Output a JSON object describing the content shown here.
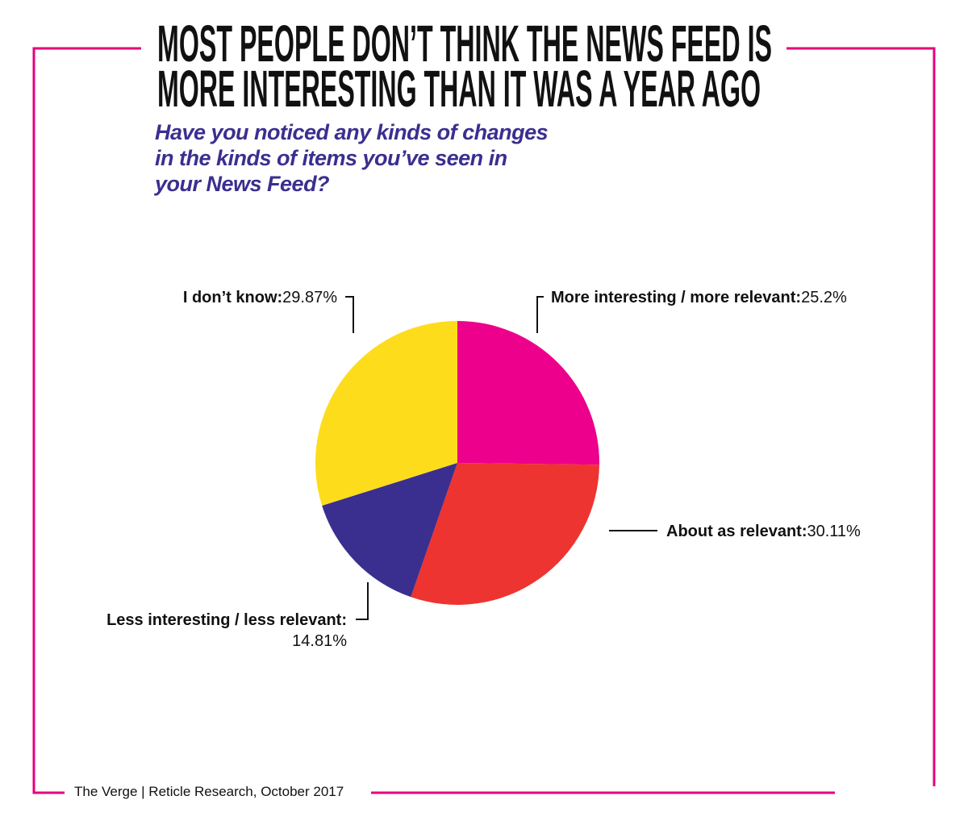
{
  "chart_data": {
    "type": "pie",
    "title": [
      "MOST PEOPLE DON’T THINK THE NEWS FEED IS",
      "MORE INTERESTING THAN IT WAS A YEAR AGO"
    ],
    "subtitle": "Have you noticed any kinds of changes in the kinds of items you’ve seen in your News Feed?",
    "categories": [
      "More interesting / more relevant:",
      "About as relevant:",
      "Less interesting / less relevant:",
      "I don’t know:"
    ],
    "values": [
      25.2,
      30.11,
      14.81,
      29.87
    ],
    "value_labels": [
      "25.2%",
      "30.11%",
      "14.81%",
      "29.87%"
    ],
    "colors": [
      "#ec008c",
      "#ee3430",
      "#3a2f8f",
      "#fddc1b"
    ],
    "source": "The Verge | Reticle Research, October 2017"
  }
}
